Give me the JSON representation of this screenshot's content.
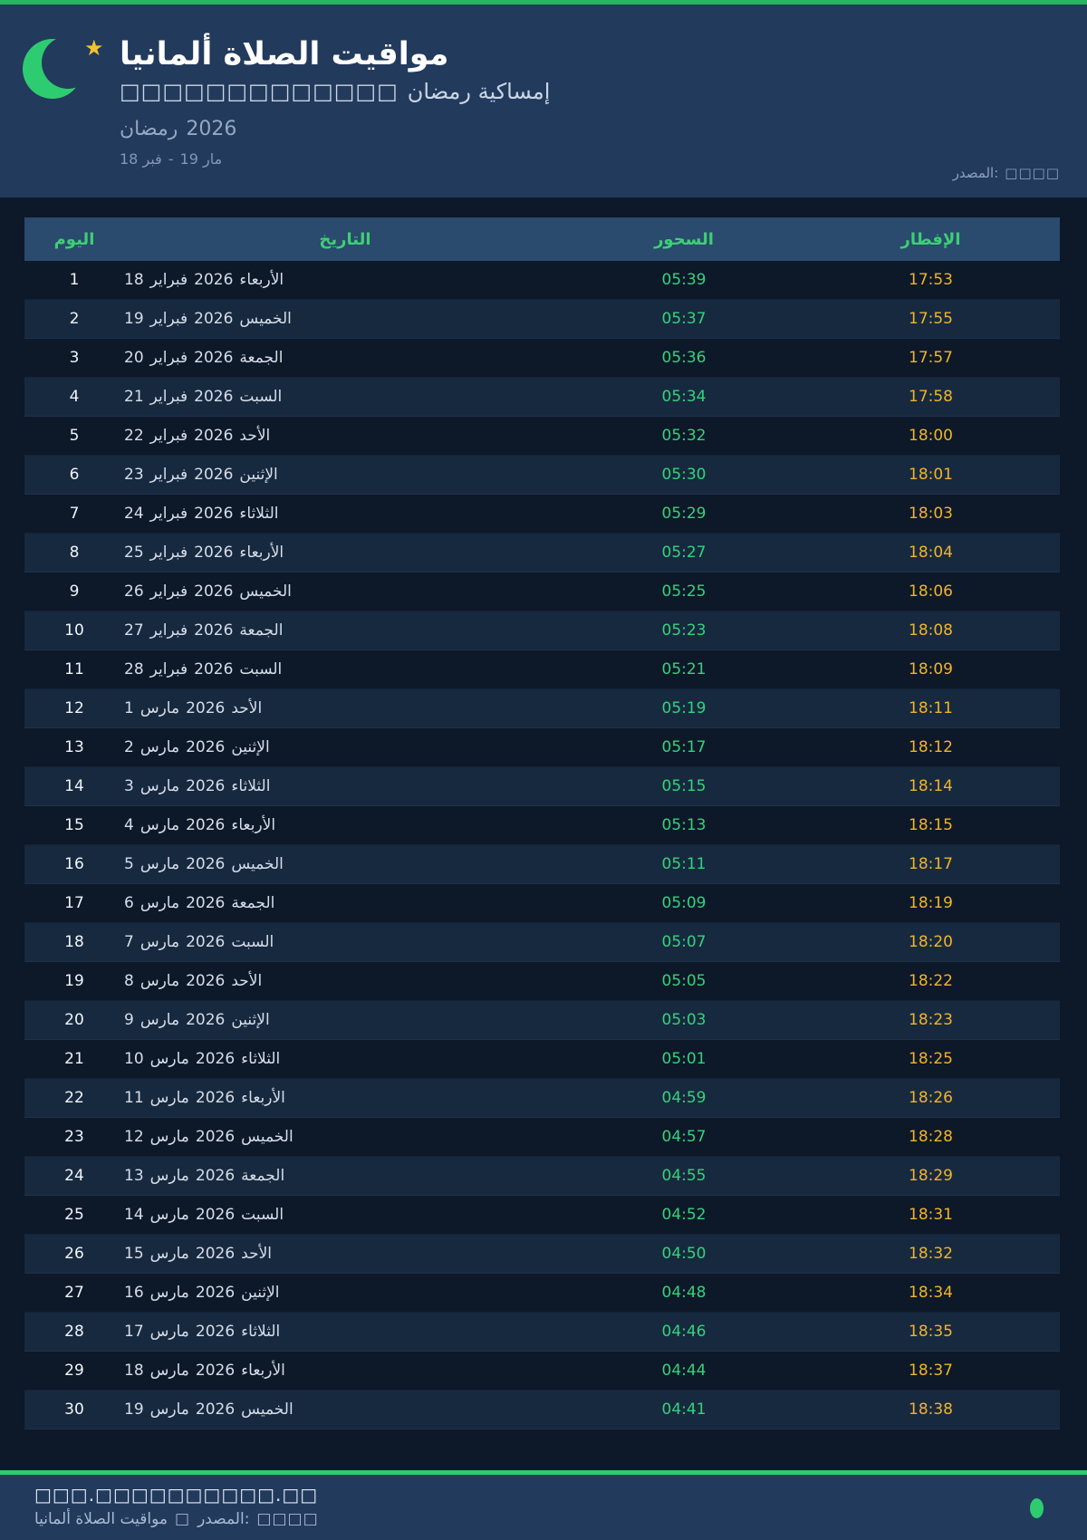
{
  "theme": {
    "top_bar_green": "#27b65c",
    "accent_green": "#2ecc71",
    "suhoor_green": "#35d27a",
    "iftar_amber": "#f0b429",
    "header_navy": "#223a5c",
    "page_dark": "#0d1829",
    "table_head_bg": "#2a4a6e",
    "row_alt_bg": "#17293f"
  },
  "header": {
    "moon_icon": "crescent-moon",
    "star_icon": "★",
    "title": "مواقيت الصلاة ألمانيا",
    "subtitle_boxes": "□□□□□□□□□□□□□",
    "subtitle_text": "إمساكية رمضان",
    "ramadan_label": "رمضان",
    "ramadan_year": "2026",
    "range_from": "18 فبر",
    "range_sep": "-",
    "range_to": "19 مار",
    "source_label": "المصدر:",
    "source_value": "□□□□"
  },
  "table": {
    "columns": {
      "day": "اليوم",
      "date": "التاريخ",
      "suhoor": "السحور",
      "iftar": "الإفطار"
    },
    "rows": [
      {
        "day": "1",
        "date_day": "18",
        "month": "فبراير",
        "year": "2026",
        "weekday": "الأربعاء",
        "suhoor": "05:39",
        "iftar": "17:53"
      },
      {
        "day": "2",
        "date_day": "19",
        "month": "فبراير",
        "year": "2026",
        "weekday": "الخميس",
        "suhoor": "05:37",
        "iftar": "17:55"
      },
      {
        "day": "3",
        "date_day": "20",
        "month": "فبراير",
        "year": "2026",
        "weekday": "الجمعة",
        "suhoor": "05:36",
        "iftar": "17:57"
      },
      {
        "day": "4",
        "date_day": "21",
        "month": "فبراير",
        "year": "2026",
        "weekday": "السبت",
        "suhoor": "05:34",
        "iftar": "17:58"
      },
      {
        "day": "5",
        "date_day": "22",
        "month": "فبراير",
        "year": "2026",
        "weekday": "الأحد",
        "suhoor": "05:32",
        "iftar": "18:00"
      },
      {
        "day": "6",
        "date_day": "23",
        "month": "فبراير",
        "year": "2026",
        "weekday": "الإثنين",
        "suhoor": "05:30",
        "iftar": "18:01"
      },
      {
        "day": "7",
        "date_day": "24",
        "month": "فبراير",
        "year": "2026",
        "weekday": "الثلاثاء",
        "suhoor": "05:29",
        "iftar": "18:03"
      },
      {
        "day": "8",
        "date_day": "25",
        "month": "فبراير",
        "year": "2026",
        "weekday": "الأربعاء",
        "suhoor": "05:27",
        "iftar": "18:04"
      },
      {
        "day": "9",
        "date_day": "26",
        "month": "فبراير",
        "year": "2026",
        "weekday": "الخميس",
        "suhoor": "05:25",
        "iftar": "18:06"
      },
      {
        "day": "10",
        "date_day": "27",
        "month": "فبراير",
        "year": "2026",
        "weekday": "الجمعة",
        "suhoor": "05:23",
        "iftar": "18:08"
      },
      {
        "day": "11",
        "date_day": "28",
        "month": "فبراير",
        "year": "2026",
        "weekday": "السبت",
        "suhoor": "05:21",
        "iftar": "18:09"
      },
      {
        "day": "12",
        "date_day": "1",
        "month": "مارس",
        "year": "2026",
        "weekday": "الأحد",
        "suhoor": "05:19",
        "iftar": "18:11"
      },
      {
        "day": "13",
        "date_day": "2",
        "month": "مارس",
        "year": "2026",
        "weekday": "الإثنين",
        "suhoor": "05:17",
        "iftar": "18:12"
      },
      {
        "day": "14",
        "date_day": "3",
        "month": "مارس",
        "year": "2026",
        "weekday": "الثلاثاء",
        "suhoor": "05:15",
        "iftar": "18:14"
      },
      {
        "day": "15",
        "date_day": "4",
        "month": "مارس",
        "year": "2026",
        "weekday": "الأربعاء",
        "suhoor": "05:13",
        "iftar": "18:15"
      },
      {
        "day": "16",
        "date_day": "5",
        "month": "مارس",
        "year": "2026",
        "weekday": "الخميس",
        "suhoor": "05:11",
        "iftar": "18:17"
      },
      {
        "day": "17",
        "date_day": "6",
        "month": "مارس",
        "year": "2026",
        "weekday": "الجمعة",
        "suhoor": "05:09",
        "iftar": "18:19"
      },
      {
        "day": "18",
        "date_day": "7",
        "month": "مارس",
        "year": "2026",
        "weekday": "السبت",
        "suhoor": "05:07",
        "iftar": "18:20"
      },
      {
        "day": "19",
        "date_day": "8",
        "month": "مارس",
        "year": "2026",
        "weekday": "الأحد",
        "suhoor": "05:05",
        "iftar": "18:22"
      },
      {
        "day": "20",
        "date_day": "9",
        "month": "مارس",
        "year": "2026",
        "weekday": "الإثنين",
        "suhoor": "05:03",
        "iftar": "18:23"
      },
      {
        "day": "21",
        "date_day": "10",
        "month": "مارس",
        "year": "2026",
        "weekday": "الثلاثاء",
        "suhoor": "05:01",
        "iftar": "18:25"
      },
      {
        "day": "22",
        "date_day": "11",
        "month": "مارس",
        "year": "2026",
        "weekday": "الأربعاء",
        "suhoor": "04:59",
        "iftar": "18:26"
      },
      {
        "day": "23",
        "date_day": "12",
        "month": "مارس",
        "year": "2026",
        "weekday": "الخميس",
        "suhoor": "04:57",
        "iftar": "18:28"
      },
      {
        "day": "24",
        "date_day": "13",
        "month": "مارس",
        "year": "2026",
        "weekday": "الجمعة",
        "suhoor": "04:55",
        "iftar": "18:29"
      },
      {
        "day": "25",
        "date_day": "14",
        "month": "مارس",
        "year": "2026",
        "weekday": "السبت",
        "suhoor": "04:52",
        "iftar": "18:31"
      },
      {
        "day": "26",
        "date_day": "15",
        "month": "مارس",
        "year": "2026",
        "weekday": "الأحد",
        "suhoor": "04:50",
        "iftar": "18:32"
      },
      {
        "day": "27",
        "date_day": "16",
        "month": "مارس",
        "year": "2026",
        "weekday": "الإثنين",
        "suhoor": "04:48",
        "iftar": "18:34"
      },
      {
        "day": "28",
        "date_day": "17",
        "month": "مارس",
        "year": "2026",
        "weekday": "الثلاثاء",
        "suhoor": "04:46",
        "iftar": "18:35"
      },
      {
        "day": "29",
        "date_day": "18",
        "month": "مارس",
        "year": "2026",
        "weekday": "الأربعاء",
        "suhoor": "04:44",
        "iftar": "18:37"
      },
      {
        "day": "30",
        "date_day": "19",
        "month": "مارس",
        "year": "2026",
        "weekday": "الخميس",
        "suhoor": "04:41",
        "iftar": "18:38"
      }
    ]
  },
  "footer": {
    "website": "□□□.□□□□□□□□□□.□□",
    "app_name": "مواقيت الصلاة ألمانيا",
    "separator": "□",
    "source_label": "المصدر:",
    "source_value": "□□□□"
  }
}
